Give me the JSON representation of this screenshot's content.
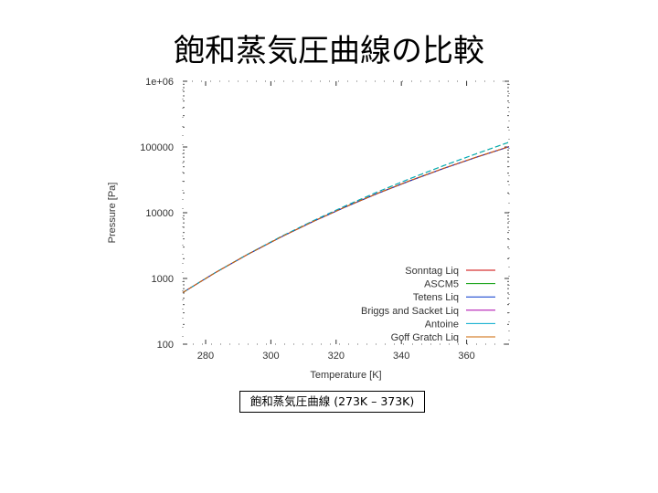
{
  "slide": {
    "title": "飽和蒸気圧曲線の比較",
    "caption": "飽和蒸気圧曲線 (273K – 373K)"
  },
  "chart_data": {
    "type": "line",
    "title": "",
    "xlabel": "Temperature [K]",
    "ylabel": "Pressure [Pa]",
    "xlim": [
      273,
      373
    ],
    "ylim": [
      100,
      1000000
    ],
    "yscale": "log",
    "xticks": [
      280,
      300,
      320,
      340,
      360
    ],
    "xtick_labels": [
      "280",
      "300",
      "320",
      "340",
      "360"
    ],
    "yticks": [
      100,
      1000,
      10000,
      100000,
      1000000
    ],
    "ytick_labels": [
      "100",
      "1000",
      "10000",
      "100000",
      "1e+06"
    ],
    "grid": false,
    "legend_position": "bottom-right",
    "series": [
      {
        "name": "Sonntag Liq",
        "color": "#cc0000",
        "x": [
          273,
          283,
          293,
          303,
          313,
          323,
          333,
          343,
          353,
          363,
          373
        ],
        "y": [
          611,
          1228,
          2339,
          4246,
          7383,
          12350,
          19950,
          31200,
          47400,
          70200,
          101300
        ]
      },
      {
        "name": "ASCM5",
        "color": "#009900",
        "x": [
          273,
          283,
          293,
          303,
          313,
          323,
          333,
          343,
          353,
          363,
          373
        ],
        "y": [
          611,
          1230,
          2350,
          4300,
          7550,
          12800,
          21000,
          33500,
          52000,
          79000,
          118000
        ]
      },
      {
        "name": "Tetens Liq",
        "color": "#0033cc",
        "x": [
          273,
          283,
          293,
          303,
          313,
          323,
          333,
          343,
          353,
          363,
          373
        ],
        "y": [
          611,
          1227,
          2337,
          4242,
          7370,
          12320,
          19880,
          31050,
          47100,
          69700,
          100500
        ]
      },
      {
        "name": "Briggs and Sacket Liq",
        "color": "#aa00aa",
        "x": [
          273,
          283,
          293,
          303,
          313,
          323,
          333,
          343,
          353,
          363,
          373
        ],
        "y": [
          611,
          1228,
          2339,
          4245,
          7382,
          12348,
          19945,
          31190,
          47390,
          70180,
          101280
        ]
      },
      {
        "name": "Antoine",
        "color": "#00aacc",
        "x": [
          273,
          283,
          293,
          303,
          313,
          323,
          333,
          343,
          353,
          363,
          373
        ],
        "y": [
          611,
          1232,
          2355,
          4310,
          7570,
          12830,
          21050,
          33600,
          52200,
          79300,
          118500
        ]
      },
      {
        "name": "Goff Gratch Liq",
        "color": "#cc6600",
        "x": [
          273,
          283,
          293,
          303,
          313,
          323,
          333,
          343,
          353,
          363,
          373
        ],
        "y": [
          611,
          1228,
          2339,
          4246,
          7384,
          12352,
          19953,
          31205,
          47410,
          70210,
          101320
        ]
      }
    ]
  }
}
